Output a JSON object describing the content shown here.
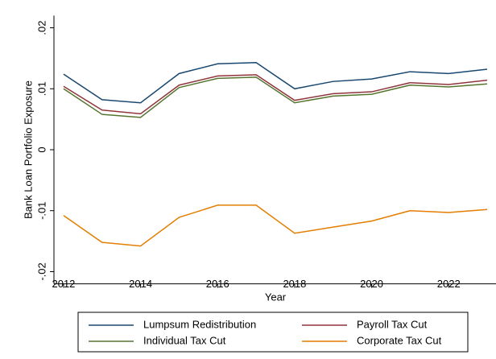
{
  "chart_data": {
    "type": "line",
    "x_label": "Year",
    "y_label": "Bank Loan Portfolio Exposure",
    "x": [
      2012,
      2013,
      2014,
      2015,
      2016,
      2017,
      2018,
      2019,
      2020,
      2021,
      2022,
      2023
    ],
    "series": [
      {
        "name": "Lumpsum Redistribution",
        "color": "#1a476f",
        "values": [
          0.0124,
          0.0082,
          0.0077,
          0.0125,
          0.0141,
          0.0143,
          0.01,
          0.0112,
          0.0116,
          0.0128,
          0.0125,
          0.0132
        ]
      },
      {
        "name": "Payroll Tax Cut",
        "color": "#90353b",
        "values": [
          0.0104,
          0.0065,
          0.0059,
          0.0106,
          0.0121,
          0.0123,
          0.0081,
          0.0092,
          0.0095,
          0.011,
          0.0107,
          0.0114
        ]
      },
      {
        "name": "Individual Tax Cut",
        "color": "#55752f",
        "values": [
          0.01,
          0.0058,
          0.0053,
          0.0102,
          0.0117,
          0.0119,
          0.0077,
          0.0088,
          0.0091,
          0.0106,
          0.0103,
          0.0108
        ]
      },
      {
        "name": "Corporate Tax Cut",
        "color": "#e37e00",
        "values": [
          -0.0108,
          -0.0152,
          -0.0158,
          -0.0111,
          -0.0091,
          -0.0091,
          -0.0137,
          -0.0127,
          -0.0117,
          -0.01,
          -0.0103,
          -0.0098
        ]
      }
    ],
    "xlim": [
      2011.75,
      2023.25
    ],
    "xticks": [
      2012,
      2014,
      2016,
      2018,
      2020,
      2022
    ],
    "ylim": [
      -0.022,
      0.022
    ],
    "yticks": [
      {
        "value": -0.02,
        "label": "-.02"
      },
      {
        "value": -0.01,
        "label": "-.01"
      },
      0,
      {
        "value": 0.01,
        "label": ".01"
      },
      {
        "value": 0.02,
        "label": ".02"
      }
    ],
    "grid": false
  }
}
